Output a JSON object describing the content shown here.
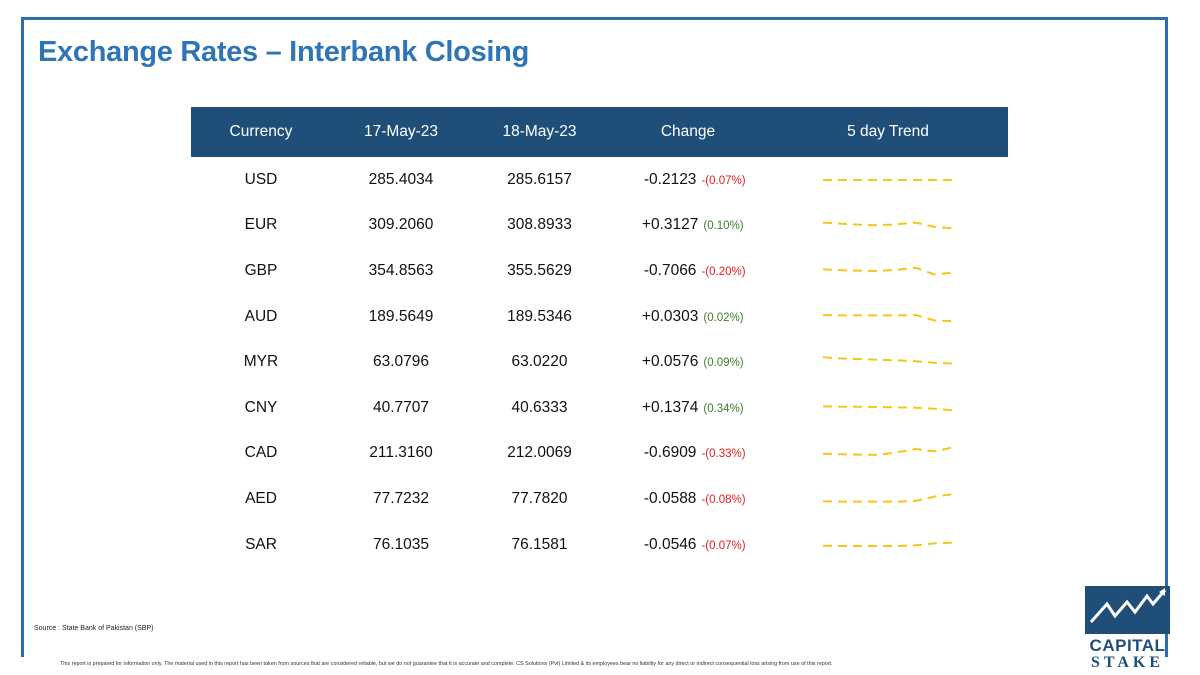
{
  "title": "Exchange Rates – Interbank Closing",
  "colors": {
    "title": "#2e75b6",
    "header_bg": "#1f4e79",
    "negative": "#e02020",
    "positive": "#3f7d2a",
    "trend_line": "#f5c518",
    "logo": "#1f4e79"
  },
  "table": {
    "headers": [
      "Currency",
      "17-May-23",
      "18-May-23",
      "Change",
      "5 day Trend"
    ],
    "rows": [
      {
        "currency": "USD",
        "d1": "285.4034",
        "d2": "285.6157",
        "change": "-0.2123",
        "pct": "-(0.07%)",
        "direction": "neg",
        "trend": [
          0.5,
          0.5,
          0.5,
          0.5,
          0.5,
          0.5,
          0.5,
          0.5
        ]
      },
      {
        "currency": "EUR",
        "d1": "309.2060",
        "d2": "308.8933",
        "change": "+0.3127",
        "pct": "(0.10%)",
        "direction": "pos",
        "trend": [
          0.35,
          0.42,
          0.48,
          0.52,
          0.45,
          0.35,
          0.62,
          0.7
        ]
      },
      {
        "currency": "GBP",
        "d1": "354.8563",
        "d2": "355.5629",
        "change": "-0.7066",
        "pct": "-(0.20%)",
        "direction": "neg",
        "trend": [
          0.4,
          0.45,
          0.48,
          0.5,
          0.42,
          0.3,
          0.72,
          0.6
        ]
      },
      {
        "currency": "AUD",
        "d1": "189.5649",
        "d2": "189.5346",
        "change": "+0.0303",
        "pct": "(0.02%)",
        "direction": "pos",
        "trend": [
          0.38,
          0.4,
          0.4,
          0.4,
          0.4,
          0.38,
          0.72,
          0.75
        ]
      },
      {
        "currency": "MYR",
        "d1": "63.0796",
        "d2": "63.0220",
        "change": "+0.0576",
        "pct": "(0.09%)",
        "direction": "pos",
        "trend": [
          0.2,
          0.28,
          0.32,
          0.36,
          0.4,
          0.45,
          0.55,
          0.6
        ]
      },
      {
        "currency": "CNY",
        "d1": "40.7707",
        "d2": "40.6333",
        "change": "+0.1374",
        "pct": "(0.34%)",
        "direction": "pos",
        "trend": [
          0.4,
          0.42,
          0.42,
          0.44,
          0.46,
          0.48,
          0.55,
          0.65
        ]
      },
      {
        "currency": "CAD",
        "d1": "211.3160",
        "d2": "212.0069",
        "change": "-0.6909",
        "pct": "-(0.33%)",
        "direction": "neg",
        "trend": [
          0.55,
          0.58,
          0.6,
          0.62,
          0.45,
          0.25,
          0.4,
          0.15
        ]
      },
      {
        "currency": "AED",
        "d1": "77.7232",
        "d2": "77.7820",
        "change": "-0.0588",
        "pct": "-(0.08%)",
        "direction": "neg",
        "trend": [
          0.65,
          0.66,
          0.66,
          0.66,
          0.66,
          0.62,
          0.35,
          0.2
        ]
      },
      {
        "currency": "SAR",
        "d1": "76.1035",
        "d2": "76.1581",
        "change": "-0.0546",
        "pct": "-(0.07%)",
        "direction": "neg",
        "trend": [
          0.55,
          0.56,
          0.56,
          0.56,
          0.56,
          0.52,
          0.4,
          0.35
        ]
      }
    ]
  },
  "source": "Source : State Bank of Pakistan (SBP)",
  "disclaimer": "This report is prepared for information only. The material used in this report has been taken from sources that are considered reliable, but we do not guarantee that it is accurate and complete. CS Solutions (Pvt) Limited & its employees bear no liability for any direct or indirect consequential loss arising from use of this report.",
  "logo": {
    "line1": "CAPITAL",
    "line2": "STAKE"
  }
}
